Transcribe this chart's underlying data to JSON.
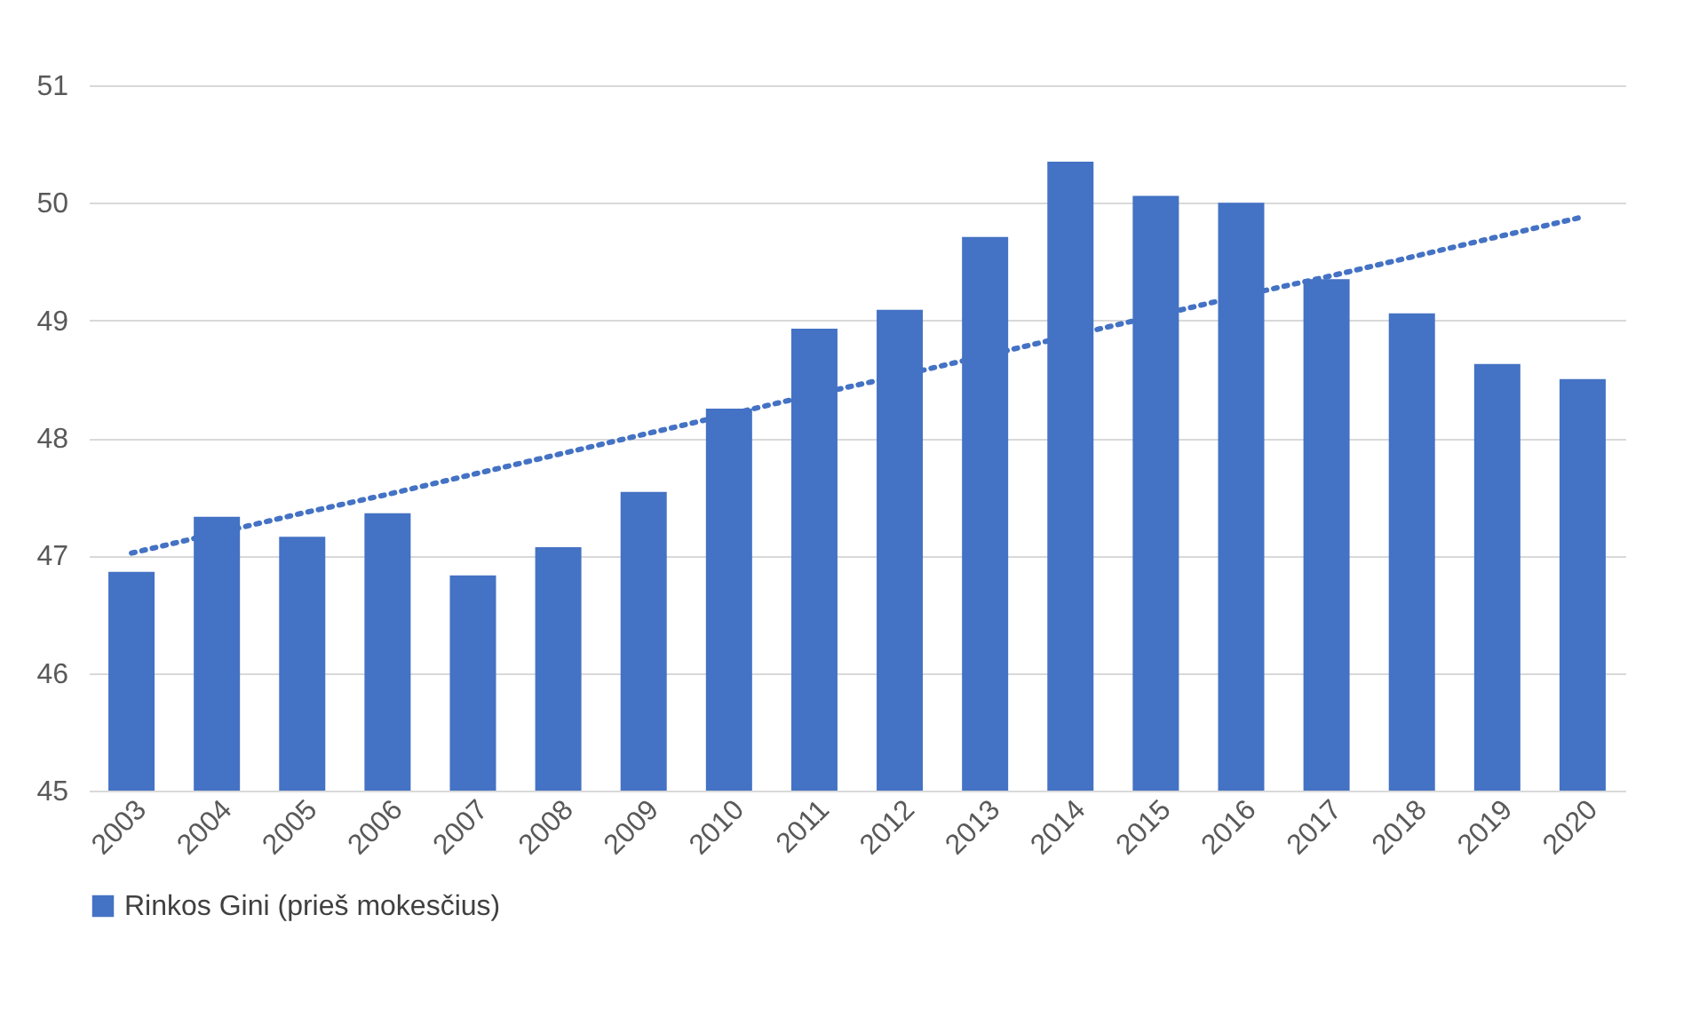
{
  "chart_data": {
    "type": "bar",
    "categories": [
      "2003",
      "2004",
      "2005",
      "2006",
      "2007",
      "2008",
      "2009",
      "2010",
      "2011",
      "2012",
      "2013",
      "2014",
      "2015",
      "2016",
      "2017",
      "2018",
      "2019",
      "2020"
    ],
    "series": [
      {
        "name": "Rinkos Gini (prieš mokesčius)",
        "color": "#4472c4",
        "values": [
          46.86,
          47.33,
          47.16,
          47.36,
          46.83,
          47.07,
          47.54,
          48.25,
          48.93,
          49.09,
          49.71,
          50.35,
          50.06,
          50.0,
          49.35,
          49.06,
          48.63,
          48.5
        ]
      },
      {
        "type": "line",
        "color": "#4472c4",
        "line_style": "dotted",
        "values": [
          47.02,
          47.19,
          47.36,
          47.52,
          47.69,
          47.86,
          48.03,
          48.2,
          48.37,
          48.53,
          48.7,
          48.87,
          49.04,
          49.21,
          49.37,
          49.54,
          49.71,
          49.88
        ]
      }
    ],
    "ylim": [
      45,
      51
    ],
    "yticks": [
      45,
      46,
      47,
      48,
      49,
      50,
      51
    ],
    "grid": "y",
    "legend": "bottom"
  }
}
